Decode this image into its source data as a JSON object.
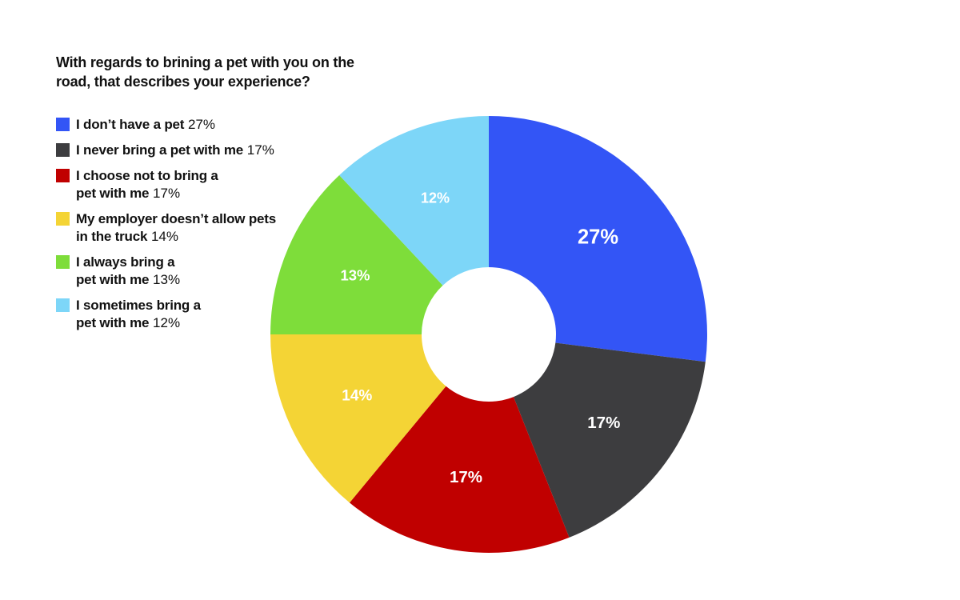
{
  "chart_data": {
    "type": "donut",
    "title": "With regards to brining a pet with you on the road, that describes your experience?",
    "series": [
      {
        "name": "I don’t have a pet",
        "value": 27,
        "value_label": "27%",
        "color": "#3355f6"
      },
      {
        "name": "I never bring a pet with me",
        "value": 17,
        "value_label": "17%",
        "color": "#3d3d3f"
      },
      {
        "name": "I choose not to bring a pet with me",
        "value": 17,
        "value_label": "17%",
        "color": "#c00000"
      },
      {
        "name": "My employer doesn’t allow pets in the truck",
        "value": 14,
        "value_label": "14%",
        "color": "#f4d435"
      },
      {
        "name": "I always bring a pet with me",
        "value": 13,
        "value_label": "13%",
        "color": "#7edd3a"
      },
      {
        "name": "I sometimes bring a pet with me",
        "value": 12,
        "value_label": "12%",
        "color": "#7dd6f8"
      }
    ]
  }
}
